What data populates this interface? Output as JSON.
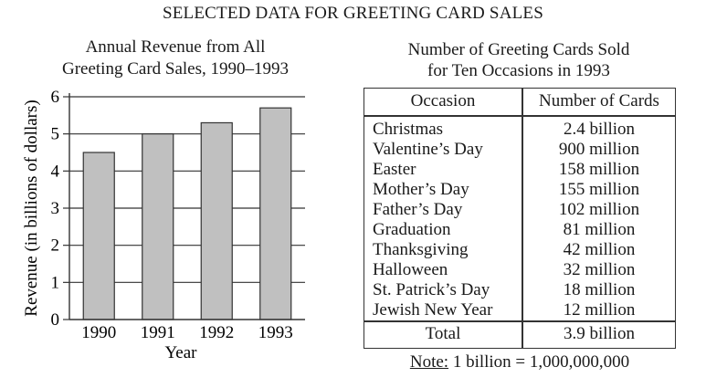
{
  "page_title": "SELECTED DATA FOR GREETING CARD SALES",
  "chart_data": {
    "type": "bar",
    "title_lines": [
      "Annual Revenue from All",
      "Greeting Card Sales, 1990–1993"
    ],
    "categories": [
      "1990",
      "1991",
      "1992",
      "1993"
    ],
    "values": [
      4.5,
      5.0,
      5.3,
      5.7
    ],
    "xlabel": "Year",
    "ylabel": "Revenue (in billions of dollars)",
    "ylim": [
      0,
      6
    ],
    "yticks": [
      "0",
      "1",
      "2",
      "3",
      "4",
      "5",
      "6"
    ],
    "grid": true,
    "bar_color": "#c0c0c0"
  },
  "table": {
    "title_lines": [
      "Number of Greeting Cards Sold",
      "for Ten Occasions in 1993"
    ],
    "columns": [
      "Occasion",
      "Number of Cards"
    ],
    "rows": [
      {
        "occasion": "Christmas",
        "cards": "2.4 billion"
      },
      {
        "occasion": "Valentine’s Day",
        "cards": "900 million"
      },
      {
        "occasion": "Easter",
        "cards": "158 million"
      },
      {
        "occasion": "Mother’s Day",
        "cards": "155 million"
      },
      {
        "occasion": "Father’s Day",
        "cards": "102 million"
      },
      {
        "occasion": "Graduation",
        "cards": "81 million"
      },
      {
        "occasion": "Thanksgiving",
        "cards": "42 million"
      },
      {
        "occasion": "Halloween",
        "cards": "32 million"
      },
      {
        "occasion": "St. Patrick’s Day",
        "cards": "18 million"
      },
      {
        "occasion": "Jewish New Year",
        "cards": "12 million"
      }
    ],
    "total_label": "Total",
    "total_value": "3.9 billion"
  },
  "note": {
    "label": "Note:",
    "text": "1 billion = 1,000,000,000"
  }
}
